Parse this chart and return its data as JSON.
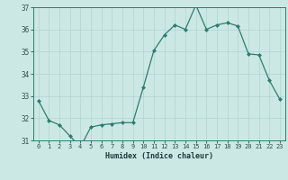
{
  "x": [
    0,
    1,
    2,
    3,
    4,
    5,
    6,
    7,
    8,
    9,
    10,
    11,
    12,
    13,
    14,
    15,
    16,
    17,
    18,
    19,
    20,
    21,
    22,
    23
  ],
  "y": [
    32.8,
    31.9,
    31.7,
    31.2,
    30.7,
    31.6,
    31.7,
    31.75,
    31.8,
    31.8,
    33.4,
    35.05,
    35.75,
    36.2,
    36.0,
    37.1,
    36.0,
    36.2,
    36.3,
    36.15,
    34.9,
    34.85,
    33.7,
    32.85
  ],
  "xlabel": "Humidex (Indice chaleur)",
  "ylim": [
    31,
    37
  ],
  "yticks": [
    31,
    32,
    33,
    34,
    35,
    36,
    37
  ],
  "xticks": [
    0,
    1,
    2,
    3,
    4,
    5,
    6,
    7,
    8,
    9,
    10,
    11,
    12,
    13,
    14,
    15,
    16,
    17,
    18,
    19,
    20,
    21,
    22,
    23
  ],
  "line_color": "#2e7d6e",
  "marker": "D",
  "marker_size": 2.0,
  "bg_color": "#cce8e4",
  "grid_color": "#b0d4d0",
  "tick_color": "#2e7d6e",
  "font_color": "#2e4e4e",
  "label_color": "#1a3a3a"
}
